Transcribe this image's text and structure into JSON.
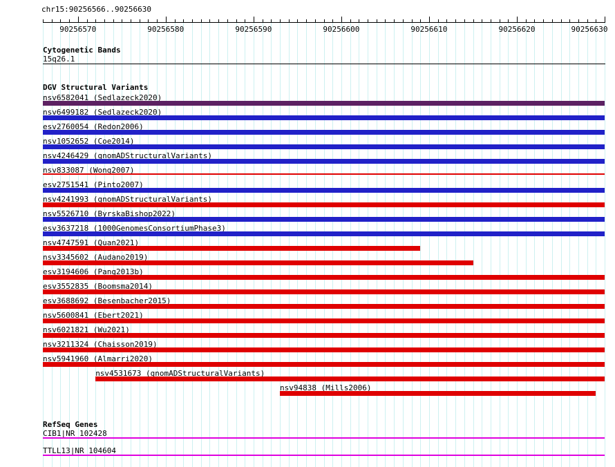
{
  "title_bar": {
    "position_text": "chr15:90256566..90256630"
  },
  "colors": {
    "grid": "#CDF1F1",
    "axis": "#000000",
    "gain": "#2121C8",
    "loss": "#DF0000",
    "gain_loss": "#5C2162",
    "gene": "#DF00DF",
    "band": "#000000"
  },
  "chart_data": {
    "type": "bar",
    "title": "chr15:90256566..90256630",
    "xlabel": "",
    "ylabel": "",
    "grid": true,
    "x_range": [
      90256566,
      90256630
    ],
    "x_ticks": [
      90256570,
      90256580,
      90256590,
      90256600,
      90256610,
      90256620,
      90256630
    ],
    "tracks": [
      {
        "name": "Cytogenetic Bands",
        "items": [
          {
            "label": "15q26.1",
            "start": 90256566,
            "end": 90256630,
            "glyph": "band-line"
          }
        ]
      },
      {
        "name": "DGV Structural Variants",
        "items": [
          {
            "label": "nsv6582041 (Sedlazeck2020)",
            "start": 90256566,
            "end": 90256630,
            "color_key": "gain_loss",
            "glyph": "bar"
          },
          {
            "label": "nsv6499182 (Sedlazeck2020)",
            "start": 90256566,
            "end": 90256630,
            "color_key": "gain",
            "glyph": "bar"
          },
          {
            "label": "esv2760054 (Redon2006)",
            "start": 90256566,
            "end": 90256630,
            "color_key": "gain",
            "glyph": "bar"
          },
          {
            "label": "nsv1052652 (Coe2014)",
            "start": 90256566,
            "end": 90256630,
            "color_key": "gain",
            "glyph": "bar"
          },
          {
            "label": "nsv4246429 (gnomADStructuralVariants)",
            "start": 90256566,
            "end": 90256630,
            "color_key": "gain",
            "glyph": "bar"
          },
          {
            "label": "nsv833087 (Wong2007)",
            "start": 90256566,
            "end": 90256630,
            "color_key": "loss",
            "glyph": "thin-line"
          },
          {
            "label": "esv2751541 (Pinto2007)",
            "start": 90256566,
            "end": 90256630,
            "color_key": "gain",
            "glyph": "bar"
          },
          {
            "label": "nsv4241993 (gnomADStructuralVariants)",
            "start": 90256566,
            "end": 90256630,
            "color_key": "loss",
            "glyph": "bar"
          },
          {
            "label": "nsv5526710 (ByrskaBishop2022)",
            "start": 90256566,
            "end": 90256630,
            "color_key": "gain",
            "glyph": "bar"
          },
          {
            "label": "esv3637218 (1000GenomesConsortiumPhase3)",
            "start": 90256566,
            "end": 90256630,
            "color_key": "gain",
            "glyph": "bar"
          },
          {
            "label": "nsv4747591 (Quan2021)",
            "start": 90256566,
            "end": 90256609,
            "color_key": "loss",
            "glyph": "bar"
          },
          {
            "label": "nsv3345602 (Audano2019)",
            "start": 90256566,
            "end": 90256615,
            "color_key": "loss",
            "glyph": "bar"
          },
          {
            "label": "esv3194606 (Pang2013b)",
            "start": 90256566,
            "end": 90256630,
            "color_key": "loss",
            "glyph": "bar"
          },
          {
            "label": "esv3552835 (Boomsma2014)",
            "start": 90256566,
            "end": 90256630,
            "color_key": "loss",
            "glyph": "bar"
          },
          {
            "label": "esv3688692 (Besenbacher2015)",
            "start": 90256566,
            "end": 90256630,
            "color_key": "loss",
            "glyph": "bar"
          },
          {
            "label": "nsv5600841 (Ebert2021)",
            "start": 90256566,
            "end": 90256630,
            "color_key": "loss",
            "glyph": "bar"
          },
          {
            "label": "nsv6021821 (Wu2021)",
            "start": 90256566,
            "end": 90256630,
            "color_key": "loss",
            "glyph": "bar"
          },
          {
            "label": "nsv3211324 (Chaisson2019)",
            "start": 90256566,
            "end": 90256630,
            "color_key": "loss",
            "glyph": "bar"
          },
          {
            "label": "nsv5941960 (Almarri2020)",
            "start": 90256566,
            "end": 90256630,
            "color_key": "loss",
            "glyph": "bar"
          },
          {
            "label": "nsv4531673 (gnomADStructuralVariants)",
            "start": 90256572,
            "end": 90256630,
            "color_key": "loss",
            "glyph": "bar"
          },
          {
            "label": "nsv94838 (Mills2006)",
            "start": 90256593,
            "end": 90256629,
            "color_key": "loss",
            "glyph": "bar"
          }
        ]
      },
      {
        "name": "RefSeq Genes",
        "items": [
          {
            "label": "CIB1|NR_102428",
            "start": 90256566,
            "end": 90256630,
            "glyph": "gene-line"
          },
          {
            "label": "TTLL13|NR_104604",
            "start": 90256566,
            "end": 90256630,
            "glyph": "gene-line"
          }
        ]
      }
    ]
  }
}
